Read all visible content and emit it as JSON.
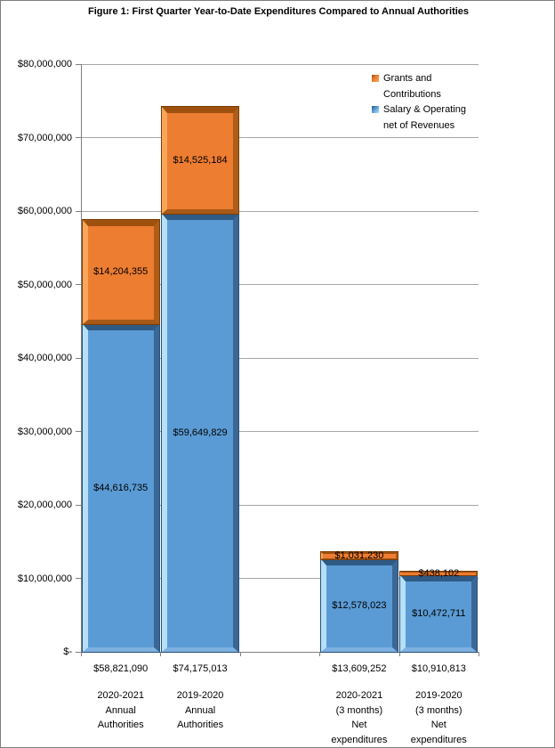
{
  "figure": {
    "title": "Figure 1: First Quarter Year-to-Date Expenditures Compared to Annual Authorities"
  },
  "legend": {
    "position": "top-right",
    "items": [
      {
        "name": "Grants and Contributions",
        "label_lines": [
          "Grants and",
          "Contributions"
        ],
        "color": "#ED7D31",
        "marker_dark": "#9E500E",
        "marker_light": "#F8A659"
      },
      {
        "name": "Salary & Operating net of Revenues",
        "label_lines": [
          "Salary & Operating",
          "net of Revenues"
        ],
        "color": "#5B9BD5",
        "marker_dark": "#2E5A84",
        "marker_light": "#B5E0F8"
      }
    ]
  },
  "chart_data": {
    "type": "bar",
    "stacked": true,
    "title": "Figure 1: First Quarter Year-to-Date Expenditures Compared to Annual Authorities",
    "categories": [
      "2020-2021 Annual Authorities",
      "2019-2020 Annual Authorities",
      "2020-2021 (3 months) Net expenditures",
      "2019-2020 (3 months) Net expenditures"
    ],
    "category_label_lines": [
      [
        "2020-2021",
        "Annual",
        "Authorities"
      ],
      [
        "2019-2020",
        "Annual",
        "Authorities"
      ],
      [
        "2020-2021",
        "(3 months)",
        "Net",
        "expenditures"
      ],
      [
        "2019-2020",
        "(3 months)",
        "Net",
        "expenditures"
      ]
    ],
    "category_totals": [
      58821090,
      74175013,
      13609252,
      10910813
    ],
    "category_total_labels": [
      "$58,821,090",
      "$74,175,013",
      "$13,609,252",
      "$10,910,813"
    ],
    "series": [
      {
        "name": "Salary & Operating net of Revenues",
        "color": "#5B9BD5",
        "values": [
          44616735,
          59649829,
          12578023,
          10472711
        ],
        "labels": [
          "$44,616,735",
          "$59,649,829",
          "$12,578,023",
          "$10,472,711"
        ],
        "bevel": {
          "top": "#2E5A84",
          "left": "#B5E0F8",
          "right": "#3A6795",
          "bottom": "#7EB1E0",
          "outline": "#28517A"
        }
      },
      {
        "name": "Grants and Contributions",
        "color": "#ED7D31",
        "values": [
          14204355,
          14525184,
          1031230,
          438102
        ],
        "labels": [
          "$14,204,355",
          "$14,525,184",
          "$1,031,230",
          "$438,102"
        ],
        "bevel": {
          "top": "#9E500E",
          "left": "#F8A659",
          "right": "#AF5D17",
          "bottom": "#A85817",
          "outline": "#7C3D05"
        }
      }
    ],
    "ylim": [
      0,
      80000000
    ],
    "ytick_step": 10000000,
    "ytick_labels": [
      "$-",
      "$10,000,000",
      "$20,000,000",
      "$30,000,000",
      "$40,000,000",
      "$50,000,000",
      "$60,000,000",
      "$70,000,000",
      "$80,000,000"
    ],
    "grid": true,
    "legend_position": "top-right",
    "colors": {
      "gridline": "#A6A6A6",
      "axis": "#808080",
      "text": "#000000"
    },
    "layout": {
      "slot_count": 5,
      "slot_index": [
        0,
        1,
        3,
        4
      ]
    }
  }
}
